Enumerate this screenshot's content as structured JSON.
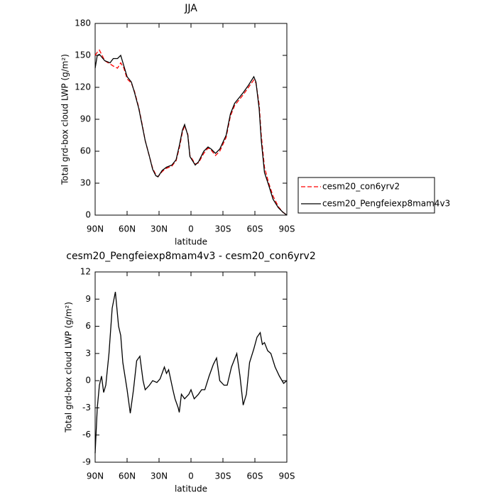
{
  "chart_data": [
    {
      "type": "line",
      "title": "JJA",
      "xlabel": "latitude",
      "ylabel": "Total grd-box cloud LWP (g/m²)",
      "xlim": [
        90,
        -90
      ],
      "xticks": [
        {
          "value": 90,
          "label": "90N"
        },
        {
          "value": 60,
          "label": "60N"
        },
        {
          "value": 30,
          "label": "30N"
        },
        0,
        {
          "value": -30,
          "label": "30S"
        },
        {
          "value": -60,
          "label": "60S"
        },
        {
          "value": -90,
          "label": "90S"
        }
      ],
      "ylim": [
        0,
        180
      ],
      "yticks": [
        0,
        30,
        60,
        90,
        120,
        150,
        180
      ],
      "legend": "right",
      "x": [
        90,
        88,
        86,
        81,
        76,
        73,
        69,
        66,
        63,
        60,
        56,
        53,
        49,
        46,
        43,
        39,
        36,
        33,
        31,
        27,
        23,
        18,
        14,
        11,
        8,
        6,
        3,
        1,
        -4,
        -7,
        -12,
        -16,
        -19,
        -23,
        -27,
        -33,
        -37,
        -41,
        -45,
        -49,
        -54,
        -59,
        -61,
        -64,
        -66,
        -69,
        -73,
        -77,
        -82,
        -86,
        -90
      ],
      "series": [
        {
          "name": "cesm20_con6yrv2",
          "color": "#ff0000",
          "line_style": "dashed",
          "values": [
            150,
            153,
            155,
            145,
            142,
            140,
            138,
            143,
            138,
            128,
            124,
            116,
            101,
            86,
            70,
            55,
            44,
            38,
            36,
            41,
            44,
            46,
            51,
            63,
            78,
            84,
            76,
            56,
            48,
            49,
            58,
            63,
            61,
            56,
            60,
            73,
            93,
            103,
            108,
            113,
            120,
            127,
            124,
            104,
            75,
            45,
            30,
            18,
            8,
            3,
            0
          ]
        },
        {
          "name": "cesm20_Pengfeiexp8mam4v3",
          "color": "#000000",
          "line_style": "solid",
          "values": [
            138,
            150,
            151,
            145,
            143,
            147,
            147,
            150,
            140,
            130,
            125,
            115,
            100,
            85,
            70,
            55,
            43,
            37,
            36,
            42,
            45,
            47,
            52,
            65,
            80,
            85,
            75,
            55,
            47,
            50,
            60,
            64,
            62,
            58,
            62,
            75,
            95,
            105,
            110,
            115,
            122,
            130,
            125,
            100,
            70,
            40,
            28,
            15,
            7,
            3,
            0
          ]
        }
      ]
    },
    {
      "type": "line",
      "title": "cesm20_Pengfeiexp8mam4v3 - cesm20_con6yrv2",
      "xlabel": "latitude",
      "ylabel": "Total grd-box cloud LWP (g/m²)",
      "xlim": [
        90,
        -90
      ],
      "xticks": [
        {
          "value": 90,
          "label": "90N"
        },
        {
          "value": 60,
          "label": "60N"
        },
        {
          "value": 30,
          "label": "30N"
        },
        0,
        {
          "value": -30,
          "label": "30S"
        },
        {
          "value": -60,
          "label": "60S"
        },
        {
          "value": -90,
          "label": "90S"
        }
      ],
      "ylim": [
        -9,
        12
      ],
      "yticks": [
        -9,
        -6,
        -3,
        0,
        3,
        6,
        9,
        12
      ],
      "color": "#000000",
      "x": [
        90,
        88,
        86,
        84,
        82,
        80,
        77,
        74,
        71,
        68,
        66,
        64,
        60,
        57,
        54,
        51,
        48,
        45,
        43,
        39,
        36,
        32,
        29,
        25,
        23,
        21,
        17,
        15,
        12,
        11,
        9,
        6,
        2,
        0,
        -3,
        -7,
        -10,
        -13,
        -17,
        -21,
        -24,
        -27,
        -31,
        -34,
        -38,
        -43,
        -46,
        -49,
        -52,
        -55,
        -59,
        -62,
        -65,
        -67,
        -69,
        -72,
        -75,
        -79,
        -83,
        -87,
        -90
      ],
      "values": [
        -8,
        -3,
        -0.5,
        0.5,
        -1.3,
        -0.5,
        3,
        8,
        9.8,
        6,
        5,
        2,
        -1,
        -3.6,
        -1,
        2.2,
        2.7,
        0,
        -1,
        -0.5,
        0,
        -0.2,
        0.2,
        1.5,
        0.8,
        1.2,
        -1,
        -2,
        -3,
        -3.5,
        -1.5,
        -2,
        -1.5,
        -1,
        -2,
        -1.5,
        -1,
        -1,
        0.5,
        1.8,
        2.5,
        0,
        -0.5,
        -0.5,
        1.5,
        3,
        0.5,
        -2.7,
        -1.5,
        2,
        3.5,
        4.8,
        5.3,
        4,
        4.2,
        3.3,
        3,
        1.5,
        0.5,
        -0.3,
        0
      ]
    }
  ]
}
